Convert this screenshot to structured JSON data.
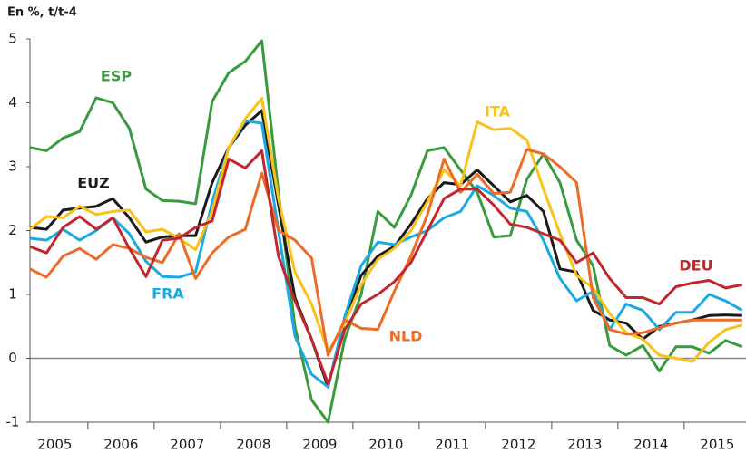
{
  "chart_data": {
    "type": "line",
    "y_label": "En %, t/t-4",
    "categories": [
      "2005",
      null,
      null,
      null,
      "2006",
      null,
      null,
      null,
      "2007",
      null,
      null,
      null,
      "2008",
      null,
      null,
      null,
      "2009",
      null,
      null,
      null,
      "2010",
      null,
      null,
      null,
      "2011",
      null,
      null,
      null,
      "2012",
      null,
      null,
      null,
      "2013",
      null,
      null,
      null,
      "2014",
      null,
      null,
      null,
      "2015",
      null,
      null,
      null
    ],
    "ylim": [
      -1,
      5
    ],
    "yticks": [
      -1,
      0,
      1,
      2,
      3,
      4,
      5
    ],
    "grid": false,
    "series": [
      {
        "name": "ESP",
        "color": "#3a9a3f",
        "values": [
          3.3,
          3.25,
          3.45,
          3.55,
          4.08,
          4.0,
          3.6,
          2.65,
          2.47,
          2.46,
          2.42,
          4.02,
          4.47,
          4.65,
          4.97,
          2.6,
          0.5,
          -0.65,
          -1.0,
          0.3,
          1.0,
          2.3,
          2.05,
          2.55,
          3.25,
          3.3,
          2.95,
          2.6,
          1.9,
          1.92,
          2.8,
          3.2,
          2.75,
          1.85,
          1.45,
          0.2,
          0.05,
          0.2,
          -0.2,
          0.18,
          0.18,
          0.08,
          0.28,
          0.18
        ]
      },
      {
        "name": "EUZ",
        "color": "#1a1a1a",
        "values": [
          2.05,
          2.02,
          2.32,
          2.35,
          2.38,
          2.5,
          2.2,
          1.82,
          1.9,
          1.92,
          1.92,
          2.75,
          3.3,
          3.65,
          3.88,
          2.4,
          0.95,
          0.3,
          -0.45,
          0.6,
          1.3,
          1.6,
          1.75,
          2.1,
          2.5,
          2.75,
          2.72,
          2.95,
          2.7,
          2.45,
          2.55,
          2.3,
          1.4,
          1.35,
          0.75,
          0.6,
          0.55,
          0.3,
          0.5,
          0.55,
          0.6,
          0.67,
          0.68,
          0.67
        ]
      },
      {
        "name": "FRA",
        "color": "#1aa9e0",
        "values": [
          1.88,
          1.85,
          2.02,
          1.85,
          2.0,
          2.2,
          1.95,
          1.52,
          1.28,
          1.27,
          1.35,
          2.45,
          3.3,
          3.72,
          3.68,
          2.0,
          0.35,
          -0.25,
          -0.45,
          0.65,
          1.45,
          1.82,
          1.78,
          1.9,
          2.0,
          2.2,
          2.3,
          2.7,
          2.55,
          2.35,
          2.3,
          1.85,
          1.25,
          0.9,
          1.05,
          0.45,
          0.85,
          0.75,
          0.45,
          0.72,
          0.72,
          1.0,
          0.9,
          0.75
        ]
      },
      {
        "name": "ITA",
        "color": "#f9c11a",
        "values": [
          2.02,
          2.22,
          2.2,
          2.38,
          2.25,
          2.3,
          2.32,
          1.98,
          2.02,
          1.88,
          1.7,
          2.3,
          3.3,
          3.75,
          4.07,
          2.5,
          1.35,
          0.85,
          0.1,
          0.55,
          1.15,
          1.55,
          1.72,
          2.0,
          2.45,
          2.95,
          2.7,
          3.7,
          3.58,
          3.6,
          3.42,
          2.65,
          1.95,
          1.3,
          1.1,
          0.7,
          0.4,
          0.3,
          0.05,
          0.0,
          -0.05,
          0.25,
          0.45,
          0.52
        ]
      },
      {
        "name": "NLD",
        "color": "#ec6b25",
        "values": [
          1.4,
          1.27,
          1.6,
          1.72,
          1.55,
          1.78,
          1.72,
          1.58,
          1.5,
          1.95,
          1.25,
          1.65,
          1.9,
          2.02,
          2.9,
          2.0,
          1.85,
          1.57,
          0.05,
          0.6,
          0.47,
          0.45,
          1.05,
          1.6,
          2.25,
          3.12,
          2.6,
          2.88,
          2.58,
          2.6,
          3.27,
          3.2,
          3.0,
          2.75,
          0.95,
          0.45,
          0.38,
          0.4,
          0.48,
          0.55,
          0.6,
          0.6,
          0.6,
          0.6
        ]
      },
      {
        "name": "DEU",
        "color": "#c1272d",
        "values": [
          1.75,
          1.65,
          2.05,
          2.22,
          2.02,
          2.2,
          1.72,
          1.28,
          1.85,
          1.88,
          2.05,
          2.15,
          3.12,
          2.98,
          3.25,
          1.6,
          0.9,
          0.3,
          -0.4,
          0.45,
          0.85,
          1.0,
          1.2,
          1.5,
          2.0,
          2.5,
          2.65,
          2.65,
          2.4,
          2.1,
          2.05,
          1.95,
          1.85,
          1.5,
          1.65,
          1.25,
          0.95,
          0.95,
          0.85,
          1.12,
          1.18,
          1.22,
          1.1,
          1.15
        ]
      }
    ]
  }
}
